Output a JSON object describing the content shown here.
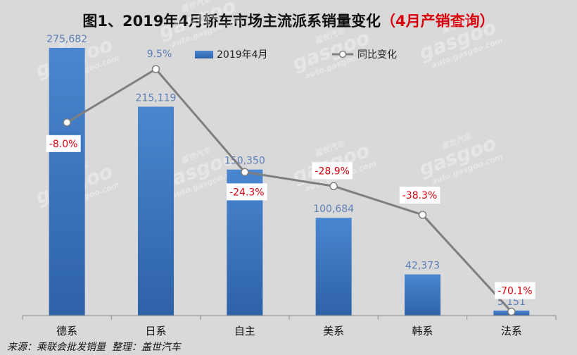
{
  "title": {
    "main": "图1、2019年4月轿车市场主流派系销量变化",
    "highlight": "（4月产销查询）"
  },
  "footer": {
    "source": "来源：乘联会批发销量",
    "editor": "整理：盖世汽车"
  },
  "watermark": {
    "brand": "gasgoo",
    "sub": "auto.gasgoo.com",
    "cn": "盖世汽车"
  },
  "colors": {
    "background": "#d9d9d9",
    "bar_top": "#4a86d0",
    "bar_bottom": "#2e62a8",
    "line": "#7f7f7f",
    "value_label": "#5b7fb6",
    "yoy_label": "#d9000d"
  },
  "chart_data": {
    "type": "bar",
    "categories": [
      "德系",
      "日系",
      "自主",
      "美系",
      "韩系",
      "法系"
    ],
    "ylim": [
      0,
      280000
    ],
    "legend_position": "top-center",
    "grid": false,
    "series": [
      {
        "name": "2019年4月",
        "type": "bar",
        "values": [
          275682,
          215119,
          150350,
          100684,
          42373,
          5151
        ],
        "labels": [
          "275,682",
          "215,119",
          "150,350",
          "100,684",
          "42,373",
          "5,151"
        ]
      },
      {
        "name": "同比变化",
        "type": "line",
        "values": [
          -8.0,
          9.5,
          -24.3,
          -28.9,
          -38.3,
          -70.1
        ],
        "labels": [
          "-8.0%",
          "9.5%",
          "-24.3%",
          "-28.9%",
          "-38.3%",
          "-70.1%"
        ],
        "ylim": [
          -88,
          16
        ]
      }
    ]
  }
}
